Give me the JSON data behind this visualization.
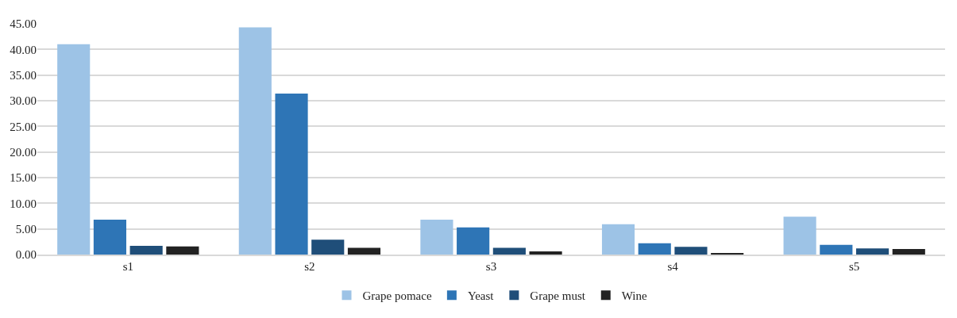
{
  "chart_data": {
    "type": "bar",
    "categories": [
      "s1",
      "s2",
      "s3",
      "s4",
      "s5"
    ],
    "series": [
      {
        "name": "Grape pomace",
        "color": "#9dc3e6",
        "values": [
          41.0,
          44.3,
          6.8,
          5.9,
          7.4
        ]
      },
      {
        "name": "Yeast",
        "color": "#2e75b6",
        "values": [
          6.8,
          31.4,
          5.3,
          2.2,
          1.9
        ]
      },
      {
        "name": "Grape must",
        "color": "#1f4e79",
        "values": [
          1.7,
          2.9,
          1.3,
          1.5,
          1.2
        ]
      },
      {
        "name": "Wine",
        "color": "#222222",
        "values": [
          1.6,
          1.3,
          0.6,
          0.2,
          1.1
        ]
      }
    ],
    "ylim": [
      0,
      45
    ],
    "yticks": [
      {
        "value": 0,
        "label": "0.00"
      },
      {
        "value": 5,
        "label": "5.00"
      },
      {
        "value": 10,
        "label": "10.00"
      },
      {
        "value": 15,
        "label": "15.00"
      },
      {
        "value": 20,
        "label": "20.00"
      },
      {
        "value": 25,
        "label": "25.00"
      },
      {
        "value": 30,
        "label": "30.00"
      },
      {
        "value": 35,
        "label": "35.00"
      },
      {
        "value": 40,
        "label": "40.00"
      },
      {
        "value": 45,
        "label": "45.00"
      }
    ],
    "grid": "y",
    "legend": "bottom"
  }
}
